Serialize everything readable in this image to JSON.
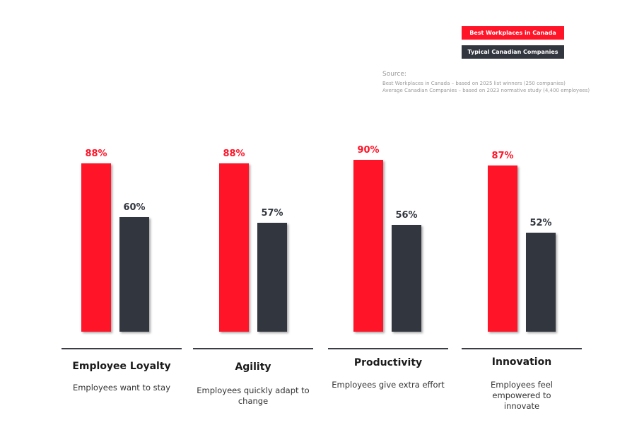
{
  "colors": {
    "best": "#ff1428",
    "typical": "#32363e"
  },
  "legend": {
    "best": "Best Workplaces in Canada",
    "typical": "Typical Canadian Companies"
  },
  "source": {
    "heading": "Source:",
    "line1": "Best Workplaces in Canada – based on 2025 list winners  (250 companies)",
    "line2": "Average Canadian Companies – based on 2023  normative study (4,400 employees)"
  },
  "chart_data": {
    "type": "bar",
    "categories": [
      "Employee Loyalty",
      "Agility",
      "Productivity",
      "Innovation"
    ],
    "descriptions": [
      "Employees want to stay",
      "Employees quickly adapt to change",
      "Employees give extra effort",
      "Employees feel empowered to innovate"
    ],
    "series": [
      {
        "name": "Best Workplaces in Canada",
        "values": [
          88,
          88,
          90,
          87
        ],
        "labels": [
          "88%",
          "88%",
          "90%",
          "87%"
        ]
      },
      {
        "name": "Typical Canadian Companies",
        "values": [
          60,
          57,
          56,
          52
        ],
        "labels": [
          "60%",
          "57%",
          "56%",
          "52%"
        ]
      }
    ],
    "ylim": [
      0,
      100
    ],
    "grid": false,
    "legend_position": "top-right"
  }
}
